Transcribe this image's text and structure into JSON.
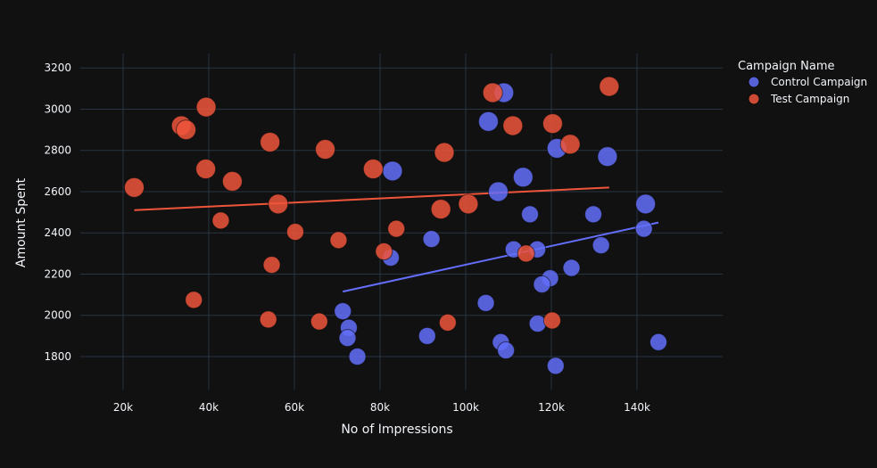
{
  "chart_data": {
    "type": "scatter",
    "xlabel": "No of Impressions",
    "ylabel": "Amount Spent",
    "xlim": [
      10000,
      160000
    ],
    "ylim": [
      1640,
      3270
    ],
    "x_ticks": [
      {
        "value": 20000,
        "label": "20k"
      },
      {
        "value": 40000,
        "label": "40k"
      },
      {
        "value": 60000,
        "label": "60k"
      },
      {
        "value": 80000,
        "label": "80k"
      },
      {
        "value": 100000,
        "label": "100k"
      },
      {
        "value": 120000,
        "label": "120k"
      },
      {
        "value": 140000,
        "label": "140k"
      }
    ],
    "y_ticks": [
      {
        "value": 1800,
        "label": "1800"
      },
      {
        "value": 2000,
        "label": "2000"
      },
      {
        "value": 2200,
        "label": "2200"
      },
      {
        "value": 2400,
        "label": "2400"
      },
      {
        "value": 2600,
        "label": "2600"
      },
      {
        "value": 2800,
        "label": "2800"
      },
      {
        "value": 3000,
        "label": "3000"
      },
      {
        "value": 3200,
        "label": "3200"
      }
    ],
    "grid": true,
    "legend_title": "Campaign Name",
    "legend_position": "top-right",
    "series": [
      {
        "name": "Control Campaign",
        "color": "#636efa",
        "points": [
          [
            108900,
            3080
          ],
          [
            105300,
            2940
          ],
          [
            121300,
            2810
          ],
          [
            133100,
            2770
          ],
          [
            113400,
            2670
          ],
          [
            82900,
            2700
          ],
          [
            107600,
            2600
          ],
          [
            115000,
            2490
          ],
          [
            129800,
            2490
          ],
          [
            142000,
            2540
          ],
          [
            141600,
            2420
          ],
          [
            92000,
            2370
          ],
          [
            111200,
            2320
          ],
          [
            116700,
            2320
          ],
          [
            131600,
            2340
          ],
          [
            124700,
            2230
          ],
          [
            82500,
            2280
          ],
          [
            119700,
            2180
          ],
          [
            117800,
            2150
          ],
          [
            104700,
            2060
          ],
          [
            71300,
            2020
          ],
          [
            72700,
            1940
          ],
          [
            116800,
            1960
          ],
          [
            72400,
            1890
          ],
          [
            91000,
            1900
          ],
          [
            108200,
            1870
          ],
          [
            74700,
            1800
          ],
          [
            109400,
            1830
          ],
          [
            145000,
            1870
          ],
          [
            121000,
            1755
          ]
        ],
        "trend": [
          [
            71300,
            2115
          ],
          [
            145000,
            2450
          ]
        ]
      },
      {
        "name": "Test Campaign",
        "color": "#ef553b",
        "points": [
          [
            133500,
            3110
          ],
          [
            106300,
            3080
          ],
          [
            39400,
            3010
          ],
          [
            33600,
            2920
          ],
          [
            34700,
            2900
          ],
          [
            111000,
            2920
          ],
          [
            120300,
            2930
          ],
          [
            124400,
            2830
          ],
          [
            54300,
            2840
          ],
          [
            67200,
            2805
          ],
          [
            95000,
            2790
          ],
          [
            39300,
            2710
          ],
          [
            78400,
            2710
          ],
          [
            45500,
            2650
          ],
          [
            22600,
            2620
          ],
          [
            56200,
            2540
          ],
          [
            100600,
            2540
          ],
          [
            94200,
            2515
          ],
          [
            42800,
            2460
          ],
          [
            60200,
            2405
          ],
          [
            83800,
            2420
          ],
          [
            70300,
            2365
          ],
          [
            80900,
            2310
          ],
          [
            114100,
            2300
          ],
          [
            54700,
            2245
          ],
          [
            36500,
            2075
          ],
          [
            53900,
            1980
          ],
          [
            65800,
            1970
          ],
          [
            95800,
            1965
          ],
          [
            120200,
            1975
          ]
        ],
        "trend": [
          [
            22600,
            2510
          ],
          [
            133500,
            2620
          ]
        ]
      }
    ]
  }
}
